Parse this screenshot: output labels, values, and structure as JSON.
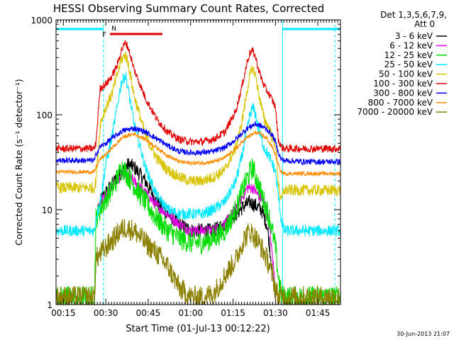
{
  "chart_data": {
    "type": "line",
    "title": "HESSI Observing Summary Count Rates, Corrected",
    "xlabel": "Start Time (01-Jul-13 00:12:22)",
    "ylabel": "Corrected Count Rate (s⁻¹ detector⁻¹)",
    "yscale": "log",
    "ylim": [
      1,
      1000
    ],
    "xlim": [
      12.4,
      113
    ],
    "x_unit": "minutes after 00:00 UT",
    "x_ticks": [
      {
        "value": 15,
        "label": "00:15"
      },
      {
        "value": 30,
        "label": "00:30"
      },
      {
        "value": 45,
        "label": "00:45"
      },
      {
        "value": 60,
        "label": "01:00"
      },
      {
        "value": 75,
        "label": "01:15"
      },
      {
        "value": 90,
        "label": "01:30"
      },
      {
        "value": 105,
        "label": "01:45"
      }
    ],
    "y_ticks": [
      {
        "value": 1,
        "label": "1"
      },
      {
        "value": 10,
        "label": "10"
      },
      {
        "value": 100,
        "label": "100"
      },
      {
        "value": 1000,
        "label": "1000"
      }
    ],
    "legend": {
      "placement": "right",
      "header": [
        "Det 1,3,5,6,7,9,",
        "Att 0"
      ]
    },
    "series": [
      {
        "name": "3 - 6 keV",
        "color": "#000000",
        "noise": 0.08,
        "x": [
          12.4,
          26,
          28,
          30,
          32,
          35,
          38,
          40,
          44,
          48,
          52,
          56,
          60,
          64,
          68,
          72,
          76,
          79,
          81,
          83,
          85,
          87,
          88,
          89,
          90,
          91,
          92,
          93,
          113
        ],
        "y": [
          null,
          null,
          12,
          15,
          18,
          24,
          30,
          28,
          20,
          12,
          9,
          7,
          6,
          6,
          6,
          7,
          9,
          11,
          12,
          11,
          10,
          7,
          4,
          2,
          1.2,
          null,
          null,
          null,
          null
        ]
      },
      {
        "name": "6 - 12 keV",
        "color": "#e000e0",
        "noise": 0.06,
        "x": [
          12.4,
          26,
          27,
          28,
          30,
          32,
          35,
          37,
          40,
          44,
          48,
          52,
          56,
          60,
          64,
          68,
          72,
          76,
          78,
          80,
          82,
          84,
          86,
          87,
          88,
          89,
          90,
          91,
          92,
          93,
          113
        ],
        "y": [
          null,
          null,
          10,
          12,
          14,
          18,
          22,
          24,
          20,
          15,
          11,
          9,
          7,
          6,
          6,
          6,
          7,
          10,
          13,
          17,
          17,
          14,
          12,
          10,
          6,
          3,
          1.5,
          null,
          null,
          null,
          null
        ]
      },
      {
        "name": "12 - 25 keV",
        "color": "#00dd00",
        "noise": 0.12,
        "x": [
          12.4,
          26,
          26.5,
          28,
          30,
          33,
          35,
          36,
          37,
          40,
          44,
          48,
          52,
          56,
          60,
          64,
          68,
          72,
          76,
          79,
          81,
          82,
          83,
          84,
          86,
          88,
          90,
          91,
          92,
          93,
          100,
          113
        ],
        "y": [
          1.2,
          1.2,
          8,
          10,
          13,
          18,
          25,
          28,
          25,
          18,
          12,
          8,
          6,
          5,
          4.5,
          4.5,
          5,
          6,
          10,
          18,
          25,
          28,
          22,
          18,
          12,
          8,
          4,
          2,
          1.3,
          1.2,
          1.2,
          1.2
        ]
      },
      {
        "name": "25 - 50 keV",
        "color": "#00e8ff",
        "noise": 0.06,
        "x": [
          12.4,
          26,
          26.5,
          28,
          30,
          32,
          34,
          35.5,
          37,
          38,
          40,
          44,
          48,
          52,
          56,
          60,
          64,
          68,
          72,
          76,
          78,
          80,
          81,
          82,
          83,
          84,
          86,
          88,
          89,
          90,
          91,
          92,
          93,
          100,
          113
        ],
        "y": [
          6,
          6,
          8,
          12,
          30,
          55,
          120,
          220,
          260,
          180,
          80,
          28,
          14,
          10,
          9,
          9,
          9,
          10,
          12,
          20,
          35,
          70,
          100,
          120,
          100,
          70,
          45,
          35,
          30,
          25,
          14,
          8,
          6,
          6,
          6
        ]
      },
      {
        "name": "50 - 100 keV",
        "color": "#d8c400",
        "noise": 0.06,
        "x": [
          12.4,
          26,
          26.5,
          28,
          30,
          32,
          34,
          35.5,
          37,
          38,
          40,
          44,
          48,
          52,
          56,
          60,
          64,
          68,
          72,
          76,
          78,
          80,
          81,
          82,
          83,
          84,
          86,
          88,
          89,
          90,
          91,
          92,
          93,
          100,
          113
        ],
        "y": [
          17,
          17,
          20,
          80,
          120,
          160,
          260,
          380,
          430,
          340,
          160,
          60,
          35,
          26,
          22,
          20,
          20,
          22,
          26,
          45,
          80,
          180,
          260,
          310,
          260,
          170,
          90,
          70,
          55,
          50,
          20,
          12,
          16,
          16,
          16
        ]
      },
      {
        "name": "100 - 300 keV",
        "color": "#e00000",
        "noise": 0.04,
        "x": [
          12.4,
          26,
          26.5,
          28,
          30,
          32,
          34,
          35.5,
          37,
          38,
          40,
          44,
          48,
          52,
          56,
          60,
          64,
          68,
          72,
          76,
          78,
          80,
          81,
          82,
          83,
          84,
          86,
          88,
          89,
          90,
          91,
          92,
          93,
          100,
          113
        ],
        "y": [
          44,
          44,
          50,
          190,
          210,
          250,
          330,
          480,
          580,
          500,
          300,
          150,
          90,
          65,
          55,
          52,
          52,
          55,
          65,
          110,
          190,
          360,
          450,
          470,
          400,
          300,
          200,
          160,
          140,
          120,
          55,
          46,
          44,
          44,
          44
        ]
      },
      {
        "name": "300 - 800 keV",
        "color": "#0000ff",
        "noise": 0.03,
        "x": [
          12.4,
          26,
          26.5,
          28,
          30,
          32,
          36,
          40,
          44,
          48,
          52,
          56,
          60,
          64,
          68,
          72,
          76,
          80,
          83,
          85,
          87,
          89,
          90,
          91,
          92,
          93,
          100,
          113
        ],
        "y": [
          33,
          33,
          38,
          46,
          50,
          56,
          68,
          72,
          66,
          56,
          47,
          41,
          40,
          40,
          41,
          45,
          55,
          72,
          80,
          76,
          70,
          60,
          52,
          40,
          34,
          33,
          32,
          32
        ]
      },
      {
        "name": "800 - 7000 keV",
        "color": "#ff8c00",
        "noise": 0.02,
        "x": [
          12.4,
          26,
          26.5,
          28,
          30,
          32,
          36,
          40,
          44,
          48,
          52,
          56,
          60,
          64,
          68,
          72,
          76,
          80,
          83,
          85,
          87,
          89,
          90,
          91,
          92,
          93,
          100,
          113
        ],
        "y": [
          25,
          25,
          28,
          34,
          38,
          44,
          58,
          63,
          55,
          45,
          37,
          32,
          31,
          31,
          32,
          35,
          44,
          58,
          65,
          62,
          56,
          45,
          38,
          30,
          25,
          24,
          24,
          24
        ]
      },
      {
        "name": "7000 - 20000 keV",
        "color": "#8b8000",
        "noise": 0.12,
        "x": [
          12.4,
          26,
          26.5,
          30,
          33,
          35,
          37,
          40,
          44,
          48,
          52,
          56,
          60,
          64,
          68,
          72,
          76,
          79,
          81,
          83,
          85,
          87,
          88,
          89,
          90,
          91,
          92,
          93,
          100,
          113
        ],
        "y": [
          1.2,
          1.2,
          3,
          4,
          5,
          6,
          6.5,
          6,
          4.5,
          3.5,
          2.5,
          1.5,
          1.2,
          1.2,
          1.3,
          2,
          3,
          5,
          6,
          5,
          4,
          3,
          2.5,
          2,
          1.5,
          1.2,
          1.2,
          1.2,
          1.2,
          1.2
        ]
      }
    ],
    "annotations": [
      {
        "label": "F",
        "color": "#e00000",
        "bar_from": 31.5,
        "bar_to": 50
      },
      {
        "label": "N",
        "color": "#00e8ff"
      }
    ],
    "night_segments": [
      [
        12.4,
        29.2
      ],
      [
        92.5,
        113
      ]
    ],
    "vlines": [
      {
        "x": 29.2,
        "style": "dashed"
      },
      {
        "x": 92.5,
        "style": "solid"
      },
      {
        "x": 111,
        "style": "dashed"
      }
    ],
    "timestamp": "30-Jun-2013 21:07"
  }
}
